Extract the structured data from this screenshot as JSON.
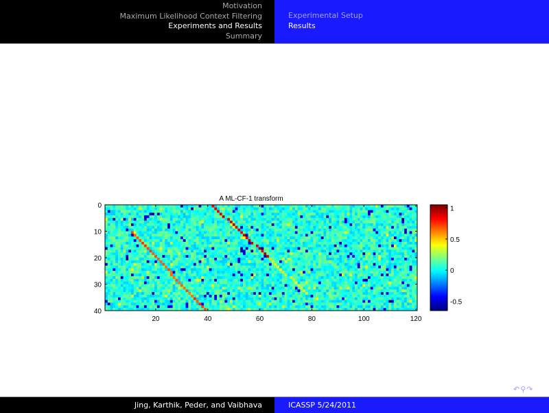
{
  "header": {
    "sections": [
      "Motivation",
      "Maximum Likelihood Context Filtering",
      "Experiments and Results",
      "Summary"
    ],
    "current_section": 2,
    "subsections": [
      "Experimental Setup",
      "Results"
    ],
    "current_subsection": 1
  },
  "footer": {
    "authors": "Jing, Karthik, Peder, and Vaibhava",
    "event": "ICASSP 5/24/2011"
  },
  "nav_icons": [
    "undo-icon",
    "search-icon",
    "redo-icon"
  ],
  "chart_data": {
    "type": "heatmap",
    "title": "A ML-CF-1 transform",
    "rows": 40,
    "cols": 120,
    "xticks": [
      20,
      40,
      60,
      80,
      100,
      120
    ],
    "yticks": [
      0,
      10,
      20,
      30,
      40
    ],
    "colorbar": {
      "colormap": "jet",
      "range": [
        -0.65,
        1.05
      ],
      "ticks": [
        1,
        0.5,
        0,
        -0.5
      ]
    },
    "background_value_range": [
      -0.6,
      0.4
    ],
    "diagonals": [
      {
        "from": [
          0,
          41
        ],
        "to": [
          20,
          63
        ],
        "value": 0.9
      },
      {
        "from": [
          20,
          63
        ],
        "to": [
          33,
          77
        ],
        "value": 0.4
      },
      {
        "from": [
          10,
          10
        ],
        "to": [
          40,
          39
        ],
        "value": 0.7
      }
    ]
  }
}
